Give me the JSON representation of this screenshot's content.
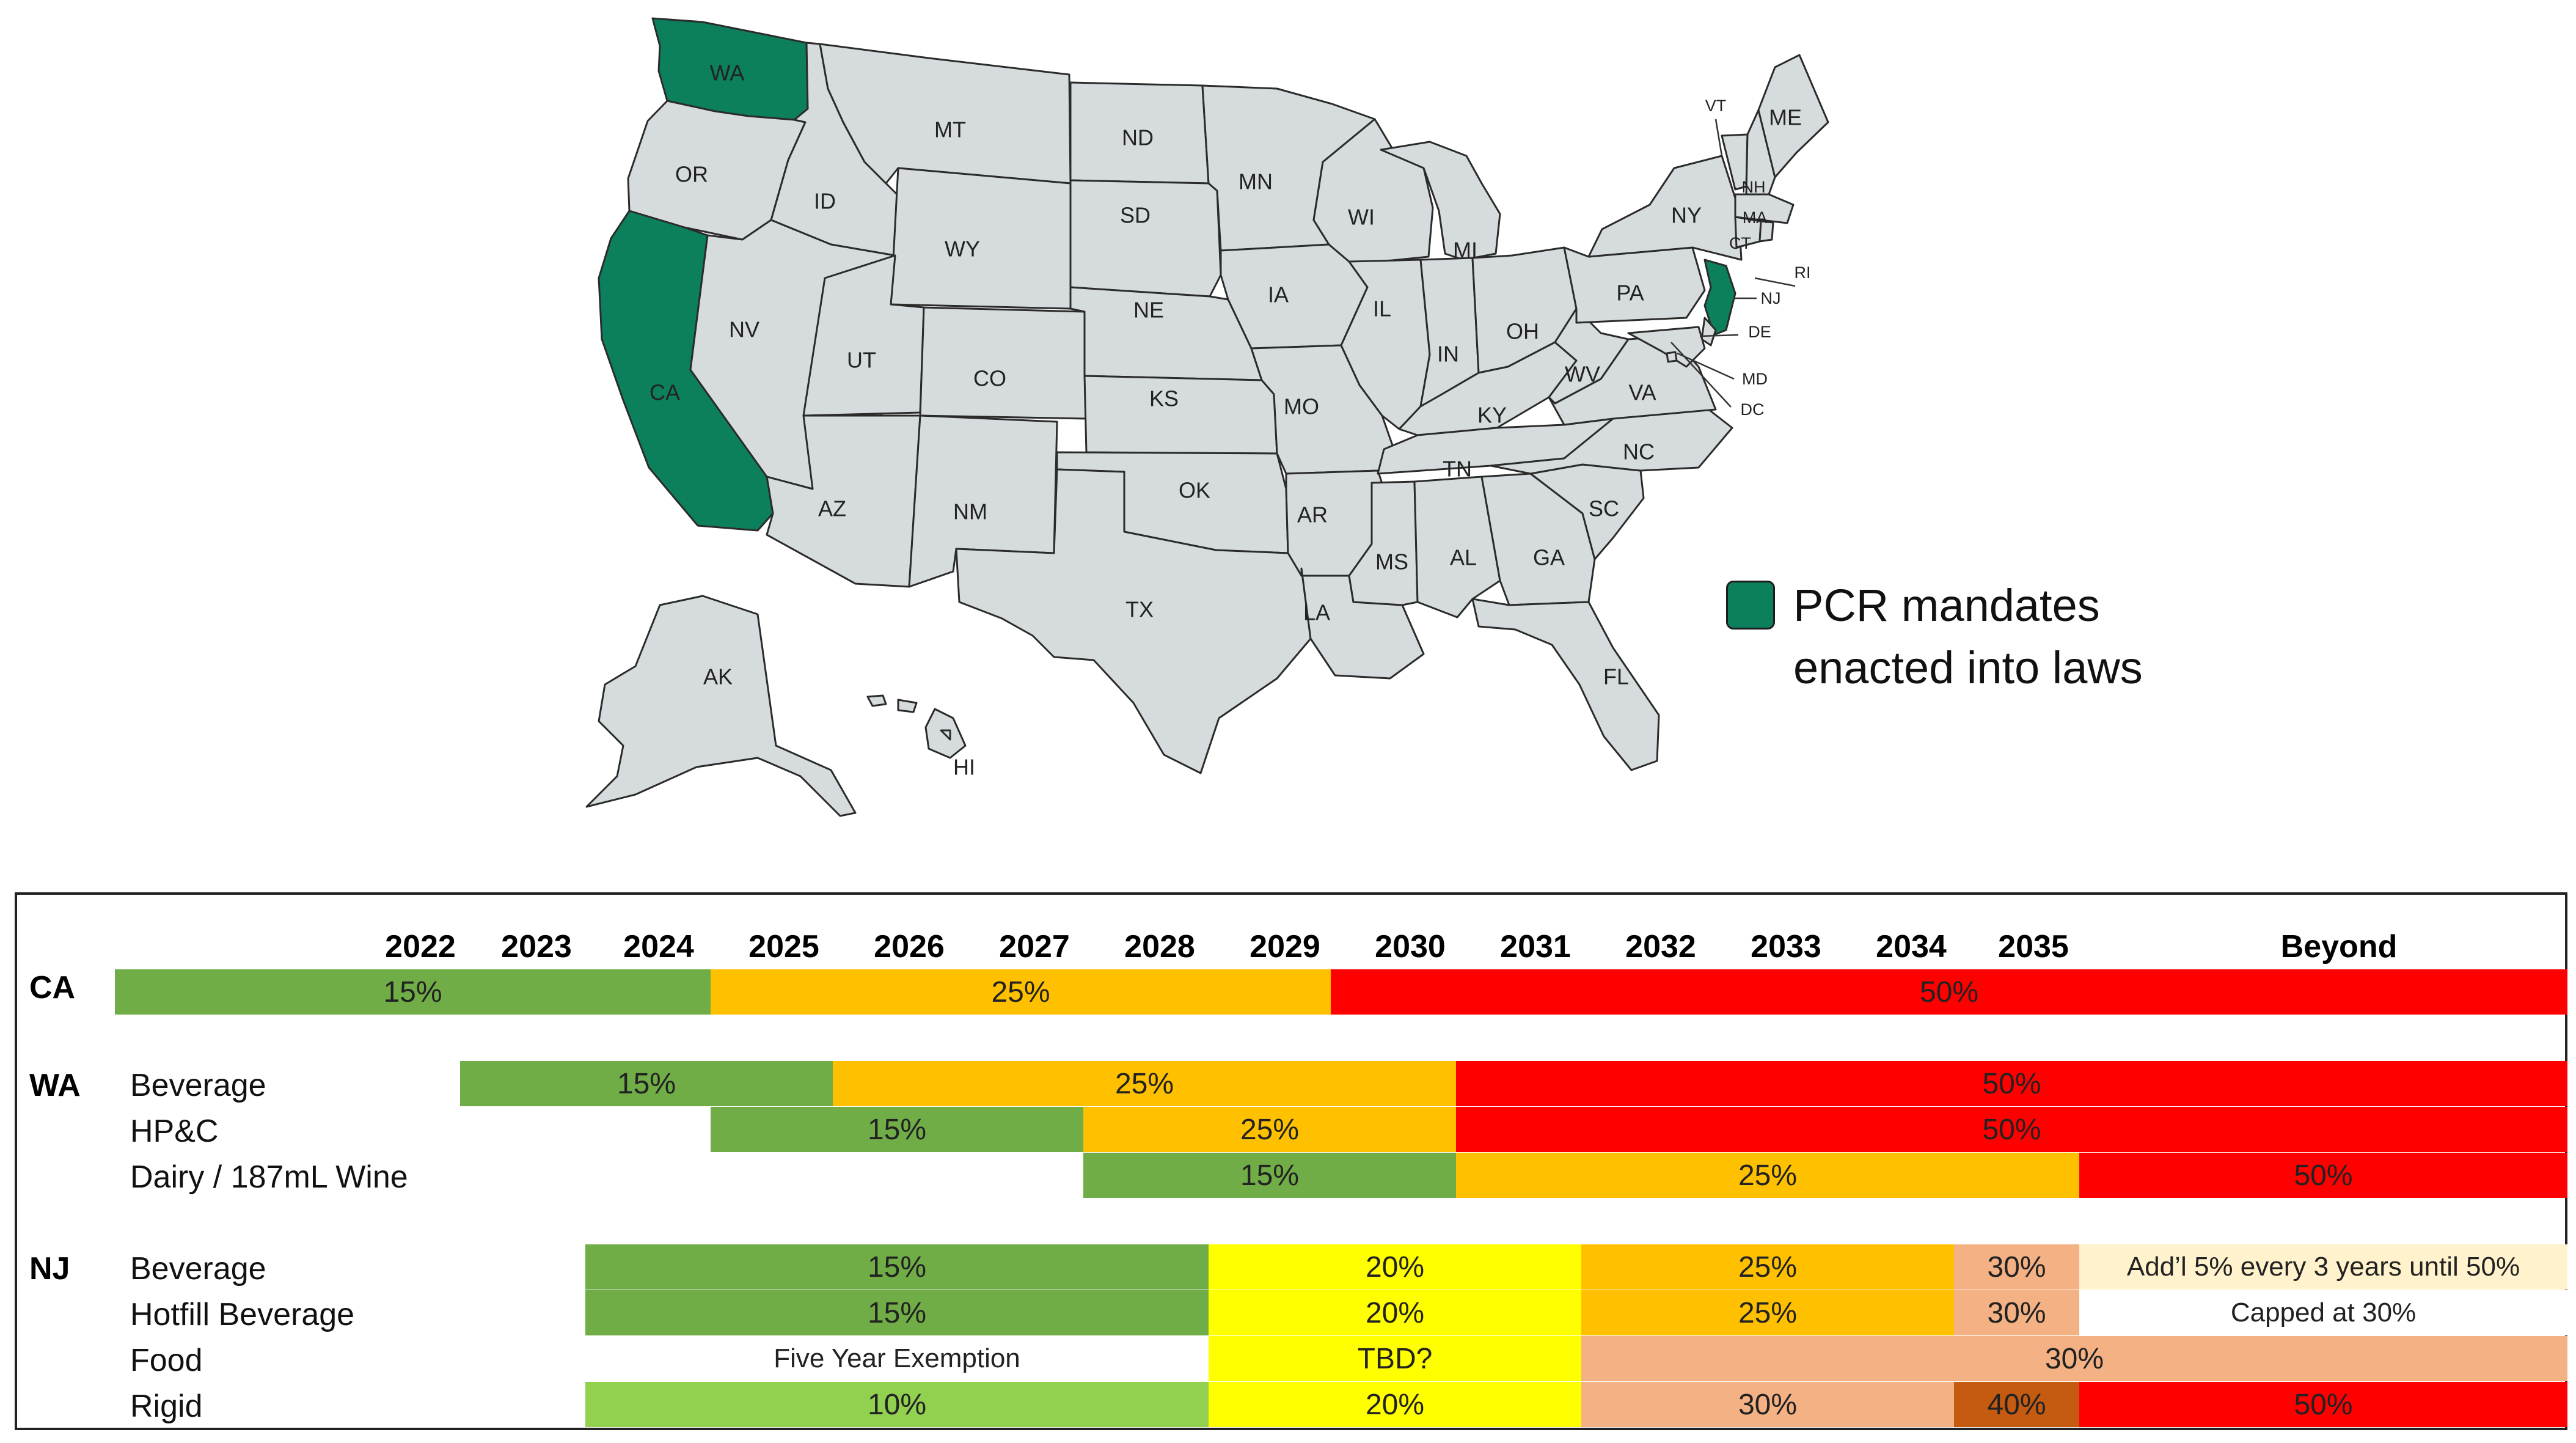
{
  "colors": {
    "enacted": "#0c7f5c",
    "other": "#d6dcdd",
    "border": "#2b2b2b",
    "g15": "#70ad47",
    "g10": "#92d050",
    "o25": "#ffc000",
    "r50": "#ff0000",
    "y20": "#ffff00",
    "p30": "#f4b183",
    "b40": "#c55a11",
    "cream": "#fff2cc"
  },
  "legend": {
    "line1": "PCR mandates",
    "line2": "enacted into laws"
  },
  "map_labels": {
    "WA": "WA",
    "OR": "OR",
    "CA": "CA",
    "ID": "ID",
    "NV": "NV",
    "MT": "MT",
    "WY": "WY",
    "UT": "UT",
    "CO": "CO",
    "AZ": "AZ",
    "NM": "NM",
    "ND": "ND",
    "SD": "SD",
    "NE": "NE",
    "KS": "KS",
    "OK": "OK",
    "TX": "TX",
    "MN": "MN",
    "IA": "IA",
    "MO": "MO",
    "AR": "AR",
    "LA": "LA",
    "WI": "WI",
    "IL": "IL",
    "MI": "MI",
    "IN": "IN",
    "OH": "OH",
    "KY": "KY",
    "TN": "TN",
    "MS": "MS",
    "AL": "AL",
    "GA": "GA",
    "FL": "FL",
    "SC": "SC",
    "NC": "NC",
    "VA": "VA",
    "WV": "WV",
    "PA": "PA",
    "NY": "NY",
    "VT": "VT",
    "NH": "NH",
    "ME": "ME",
    "MA": "MA",
    "CT": "CT",
    "RI": "RI",
    "NJ": "NJ",
    "DE": "DE",
    "MD": "MD",
    "DC": "DC",
    "AK": "AK",
    "HI": "HI"
  },
  "table": {
    "years": [
      "2022",
      "2023",
      "2024",
      "2025",
      "2026",
      "2027",
      "2028",
      "2029",
      "2030",
      "2031",
      "2032",
      "2033",
      "2034",
      "2035",
      "Beyond"
    ],
    "states": {
      "CA": "CA",
      "WA": "WA",
      "NJ": "NJ"
    },
    "categories": {
      "wa_bev": "Beverage",
      "wa_hpc": "HP&C",
      "wa_dairy": "Dairy / 187mL Wine",
      "nj_bev": "Beverage",
      "nj_hot": "Hotfill Beverage",
      "nj_food": "Food",
      "nj_rigid": "Rigid"
    },
    "rows": {
      "ca": [
        {
          "label": "15%",
          "c": "g15"
        },
        {
          "label": "25%",
          "c": "o25"
        },
        {
          "label": "50%",
          "c": "r50"
        }
      ],
      "wa_bev": [
        {
          "label": "15%",
          "c": "g15"
        },
        {
          "label": "25%",
          "c": "o25"
        },
        {
          "label": "50%",
          "c": "r50"
        }
      ],
      "wa_hpc": [
        {
          "label": "15%",
          "c": "g15"
        },
        {
          "label": "25%",
          "c": "o25"
        },
        {
          "label": "50%",
          "c": "r50"
        }
      ],
      "wa_dairy": [
        {
          "label": "15%",
          "c": "g15"
        },
        {
          "label": "25%",
          "c": "o25"
        },
        {
          "label": "50%",
          "c": "r50"
        }
      ],
      "nj_bev": [
        {
          "label": "15%",
          "c": "g15"
        },
        {
          "label": "20%",
          "c": "y20"
        },
        {
          "label": "25%",
          "c": "o25"
        },
        {
          "label": "30%",
          "c": "p30"
        },
        {
          "label": "Add’l 5% every 3 years until 50%",
          "c": "cream"
        }
      ],
      "nj_hot": [
        {
          "label": "15%",
          "c": "g15"
        },
        {
          "label": "20%",
          "c": "y20"
        },
        {
          "label": "25%",
          "c": "o25"
        },
        {
          "label": "30%",
          "c": "p30"
        },
        {
          "label": "Capped at 30%",
          "c": "white"
        }
      ],
      "nj_food": [
        {
          "label": "Five Year Exemption",
          "c": "white"
        },
        {
          "label": "TBD?",
          "c": "y20"
        },
        {
          "label": "30%",
          "c": "p30"
        }
      ],
      "nj_rigid": [
        {
          "label": "10%",
          "c": "g10"
        },
        {
          "label": "20%",
          "c": "y20"
        },
        {
          "label": "30%",
          "c": "p30"
        },
        {
          "label": "40%",
          "c": "b40"
        },
        {
          "label": "50%",
          "c": "r50"
        }
      ]
    }
  }
}
